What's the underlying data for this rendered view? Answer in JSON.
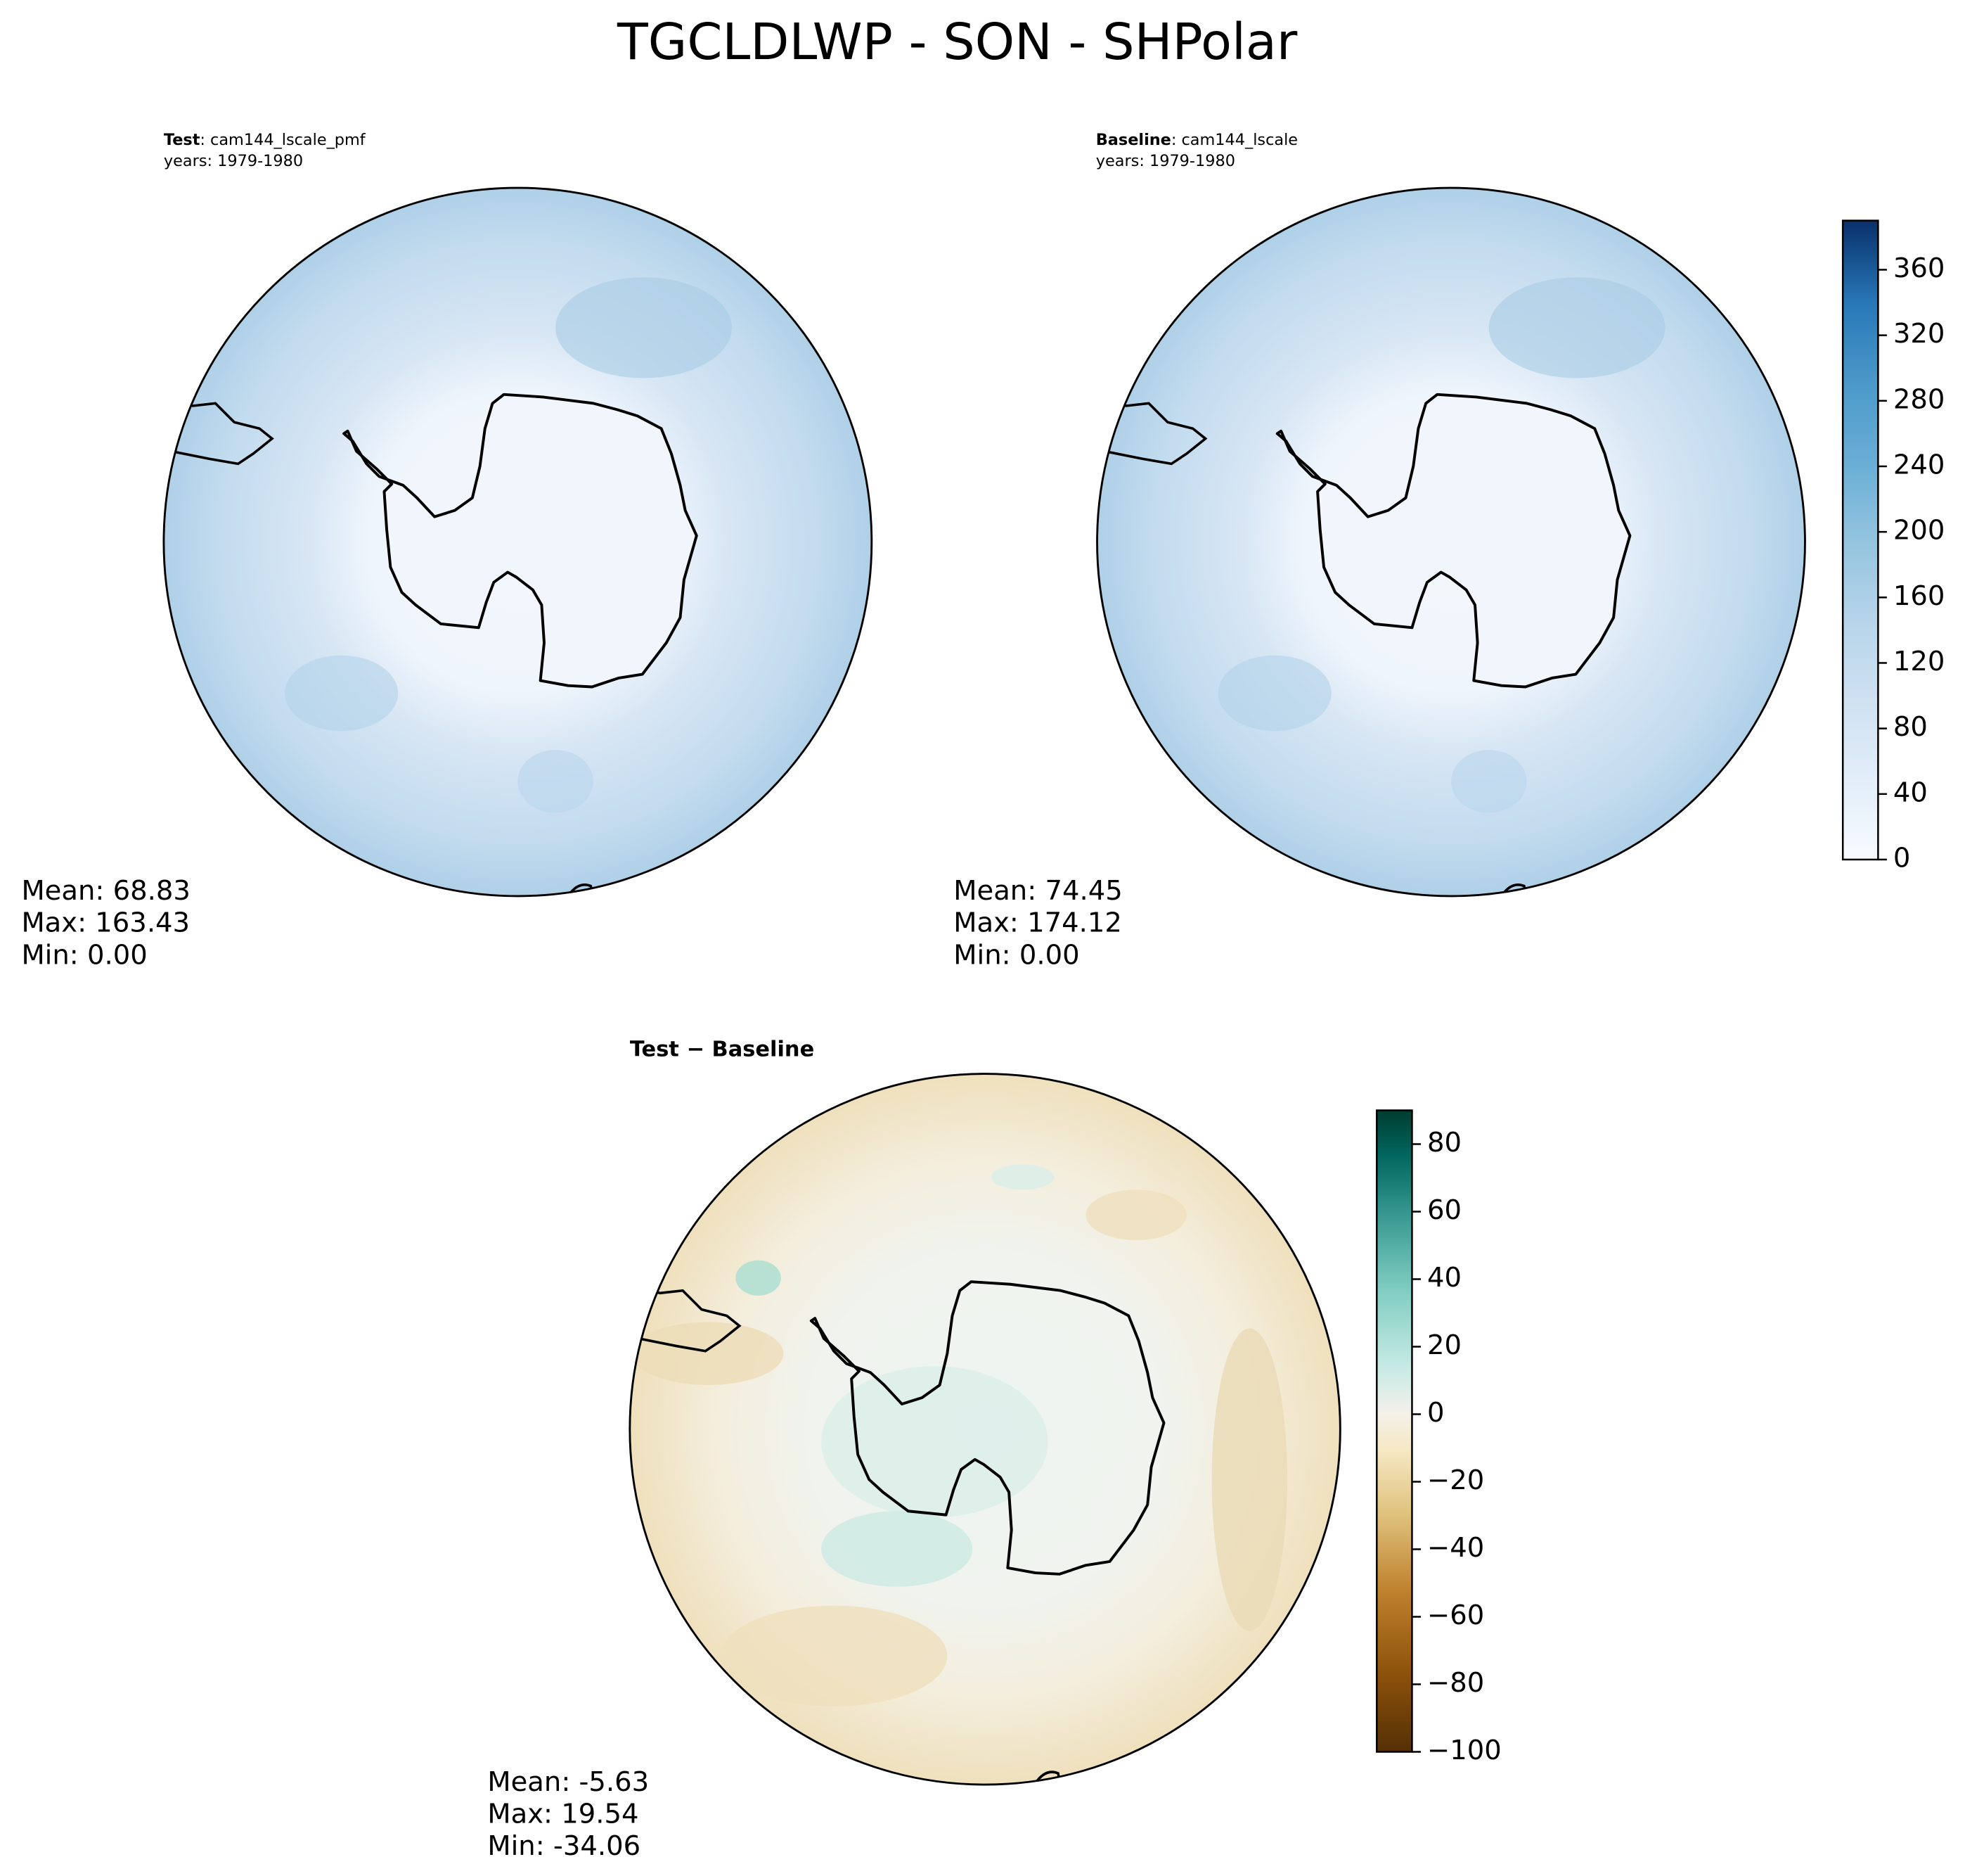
{
  "title": "TGCLDLWP - SON - SHPolar",
  "panels": [
    {
      "header": [
        "Test",
        ": cam144_lscale_pmf"
      ],
      "years": "years: 1979-1980",
      "stats": [
        "Mean: 68.83",
        "Max: 163.43",
        "Min:  0.00"
      ]
    },
    {
      "header": [
        "Baseline",
        ": cam144_lscale"
      ],
      "years": "years: 1979-1980",
      "stats": [
        "Mean: 74.45",
        "Max: 174.12",
        "Min:  0.00"
      ]
    },
    {
      "header": [
        "Test − Baseline"
      ],
      "stats": [
        "Mean: -5.63",
        "Max: 19.54",
        "Min: -34.06"
      ]
    }
  ],
  "colorbars": [
    {
      "lim": [
        0,
        390
      ],
      "ticks": [
        0,
        40,
        80,
        120,
        160,
        200,
        240,
        280,
        320,
        360
      ]
    },
    {
      "lim": [
        -100,
        90
      ],
      "ticks": [
        {
          "value": -100,
          "label": "−100"
        },
        {
          "value": -80,
          "label": "−80"
        },
        {
          "value": -60,
          "label": "−60"
        },
        {
          "value": -40,
          "label": "−40"
        },
        {
          "value": -20,
          "label": "−20"
        },
        0,
        20,
        40,
        60,
        80
      ]
    }
  ]
}
